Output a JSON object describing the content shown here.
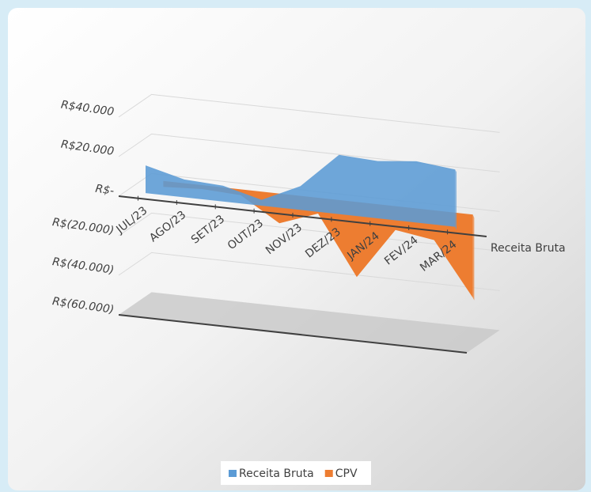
{
  "chart_data": {
    "type": "area3d",
    "categories": [
      "JUL/23",
      "AGO/23",
      "SET/23",
      "OUT/23",
      "NOV/23",
      "DEZ/23",
      "JAN/24",
      "FEV/24",
      "MAR/24"
    ],
    "series": [
      {
        "name": "Receita Bruta",
        "color": "#5b9bd5",
        "values": [
          14000,
          9000,
          8000,
          3000,
          12000,
          30000,
          29000,
          31000,
          29000
        ]
      },
      {
        "name": "CPV",
        "color": "#ed7d31",
        "values": [
          -3000,
          -2000,
          -3000,
          -15000,
          -8000,
          -38000,
          -12000,
          -15000,
          -42000
        ]
      }
    ],
    "ylim": [
      -60000,
      40000
    ],
    "yticks": [
      {
        "value": -60000,
        "label": "R$(60.000)"
      },
      {
        "value": -40000,
        "label": "R$(40.000)"
      },
      {
        "value": -20000,
        "label": "R$(20.000)"
      },
      {
        "value": 0,
        "label": "R$-"
      },
      {
        "value": 20000,
        "label": "R$20.000"
      },
      {
        "value": 40000,
        "label": "R$40.000"
      }
    ],
    "grid": true,
    "legend": "bottom"
  }
}
